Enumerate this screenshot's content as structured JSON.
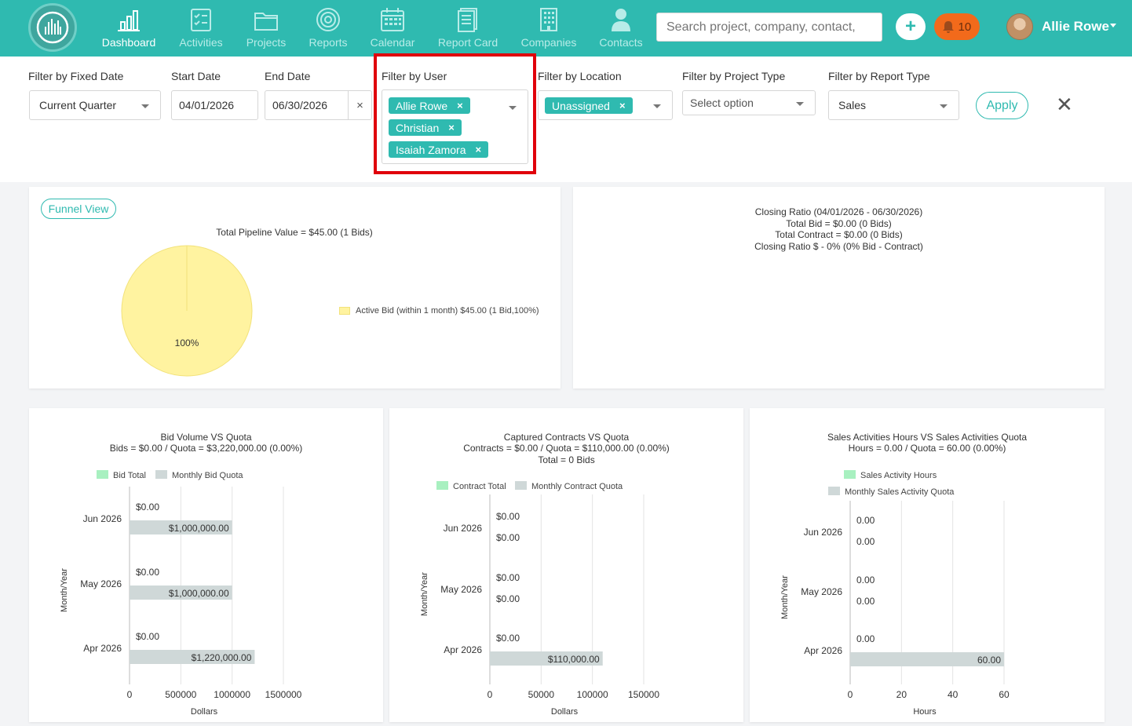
{
  "nav": {
    "items": [
      {
        "label": "Dashboard",
        "active": true,
        "icon": "bar-chart-icon"
      },
      {
        "label": "Activities",
        "active": false,
        "icon": "checklist-icon"
      },
      {
        "label": "Projects",
        "active": false,
        "icon": "folder-icon"
      },
      {
        "label": "Reports",
        "active": false,
        "icon": "target-icon"
      },
      {
        "label": "Calendar",
        "active": false,
        "icon": "calendar-icon"
      },
      {
        "label": "Report Card",
        "active": false,
        "icon": "document-icon"
      },
      {
        "label": "Companies",
        "active": false,
        "icon": "building-icon"
      },
      {
        "label": "Contacts",
        "active": false,
        "icon": "person-icon"
      }
    ],
    "search_placeholder": "Search project, company, contact,",
    "plus_label": "+",
    "notification_count": "10",
    "user_name": "Allie Rowe"
  },
  "filters": {
    "fixed_date": {
      "label": "Filter by Fixed Date",
      "value": "Current Quarter"
    },
    "start_date": {
      "label": "Start Date",
      "value": "04/01/2026"
    },
    "end_date": {
      "label": "End Date",
      "value": "06/30/2026",
      "clear": "×"
    },
    "user": {
      "label": "Filter by User",
      "tags": [
        "Allie Rowe",
        "Christian",
        "Isaiah Zamora"
      ]
    },
    "location": {
      "label": "Filter by Location",
      "tags": [
        "Unassigned"
      ]
    },
    "project_type": {
      "label": "Filter by Project Type",
      "placeholder": "Select option"
    },
    "report_type": {
      "label": "Filter by Report Type",
      "value": "Sales"
    },
    "apply_label": "Apply",
    "close_label": "✕"
  },
  "funnel": {
    "button": "Funnel View",
    "title": "Total Pipeline Value = $45.00 (1 Bids)",
    "slice_label": "100%",
    "legend": "Active Bid (within 1 month) $45.00 (1 Bid,100%)"
  },
  "closing_ratio": {
    "lines": [
      "Closing Ratio (04/01/2026 - 06/30/2026)",
      "Total Bid = $0.00 (0 Bids)",
      "Total Contract = $0.00 (0 Bids)",
      "Closing Ratio $ - 0% (0% Bid - Contract)"
    ]
  },
  "chart_data": [
    {
      "type": "pie",
      "title": "Total Pipeline Value = $45.00 (1 Bids)",
      "categories": [
        "Active Bid (within 1 month) $45.00 (1 Bid,100%)"
      ],
      "values": [
        100
      ],
      "colors": [
        "#fff3a0"
      ]
    },
    {
      "type": "bar",
      "orientation": "horizontal",
      "title": "Bid Volume VS Quota",
      "subtitle": "Bids = $0.00 / Quota = $3,220,000.00 (0.00%)",
      "ylabel": "Month/Year",
      "xlabel": "Dollars",
      "xlim": [
        0,
        1500000
      ],
      "xticks": [
        "0",
        "500000",
        "1000000",
        "1500000"
      ],
      "categories": [
        "Jun 2026",
        "May 2026",
        "Apr 2026"
      ],
      "series": [
        {
          "name": "Bid Total",
          "values": [
            0,
            0,
            0
          ],
          "labels": [
            "$0.00",
            "$0.00",
            "$0.00"
          ],
          "color": "#a8f0c0"
        },
        {
          "name": "Monthly Bid Quota",
          "values": [
            1000000,
            1000000,
            1220000
          ],
          "labels": [
            "$1,000,000.00",
            "$1,000,000.00",
            "$1,220,000.00"
          ],
          "color": "#cfd8d8"
        }
      ]
    },
    {
      "type": "bar",
      "orientation": "horizontal",
      "title": "Captured Contracts VS Quota",
      "subtitle": "Contracts = $0.00 / Quota = $110,000.00 (0.00%)",
      "subtitle2": "Total = 0 Bids",
      "ylabel": "Month/Year",
      "xlabel": "Dollars",
      "xlim": [
        0,
        150000
      ],
      "xticks": [
        "0",
        "50000",
        "100000",
        "150000"
      ],
      "categories": [
        "Jun 2026",
        "May 2026",
        "Apr 2026"
      ],
      "series": [
        {
          "name": "Contract Total",
          "values": [
            0,
            0,
            0
          ],
          "labels": [
            "$0.00",
            "$0.00",
            "$0.00"
          ],
          "color": "#a8f0c0"
        },
        {
          "name": "Monthly Contract Quota",
          "values": [
            0,
            0,
            110000
          ],
          "labels": [
            "$0.00",
            "$0.00",
            "$110,000.00"
          ],
          "color": "#cfd8d8"
        }
      ]
    },
    {
      "type": "bar",
      "orientation": "horizontal",
      "title": "Sales Activities Hours VS Sales Activities Quota",
      "subtitle": "Hours = 0.00 / Quota = 60.00 (0.00%)",
      "ylabel": "Month/Year",
      "xlabel": "Hours",
      "xlim": [
        0,
        60
      ],
      "xticks": [
        "0",
        "20",
        "40",
        "60"
      ],
      "categories": [
        "Jun 2026",
        "May 2026",
        "Apr 2026"
      ],
      "series": [
        {
          "name": "Sales Activity Hours",
          "values": [
            0,
            0,
            0
          ],
          "labels": [
            "0.00",
            "0.00",
            "0.00"
          ],
          "color": "#a8f0c0"
        },
        {
          "name": "Monthly Sales Activity Quota",
          "values": [
            0,
            0,
            60
          ],
          "labels": [
            "0.00",
            "0.00",
            "60.00"
          ],
          "color": "#cfd8d8"
        }
      ]
    }
  ]
}
